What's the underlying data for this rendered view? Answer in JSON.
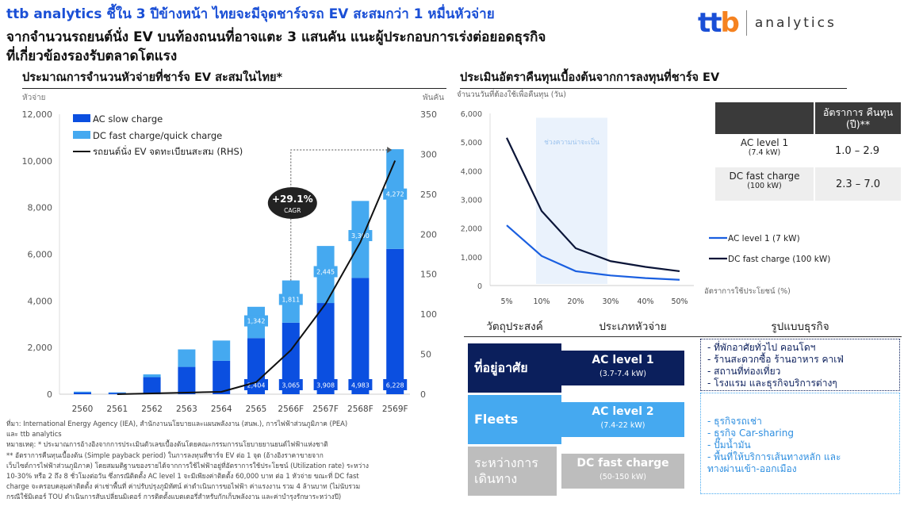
{
  "header": {
    "title": "ttb analytics ชี้ใน 3 ปีข้างหน้า ไทยจะมีจุดชาร์จรถ EV สะสมกว่า 1 หมื่นหัวจ่าย",
    "subtitle_line1": "จากจำนวนรถยนต์นั่ง EV บนท้องถนนที่อาจแตะ 3 แสนคัน แนะผู้ประกอบการเร่งต่อยอดธุรกิจ",
    "subtitle_line2": "ที่เกี่ยวข้องรองรับตลาดโตแรง",
    "logo_mark": "ttb",
    "logo_word": "analytics"
  },
  "colors": {
    "ac": "#0b4fe0",
    "dc": "#45a9f0",
    "ev_line": "#111111",
    "navy": "#0b1f5c",
    "fleet": "#45a9f0",
    "gray": "#bdbdbd",
    "accent": "#1a4fd6"
  },
  "chart_data": [
    {
      "type": "bar",
      "stacked": true,
      "title": "ประมาณการจำนวนหัวจ่ายที่ชาร์จ EV สะสมในไทย*",
      "ylabel": "หัวจ่าย",
      "y2label": "พันคัน",
      "ylim": [
        0,
        12000
      ],
      "y2lim": [
        0,
        350
      ],
      "yticks": [
        "0",
        "2,000",
        "4,000",
        "6,000",
        "8,000",
        "10,000",
        "12,000"
      ],
      "y2ticks": [
        "0",
        "50",
        "100",
        "150",
        "200",
        "250",
        "300",
        "350"
      ],
      "categories": [
        "2560",
        "2561",
        "2562",
        "2563",
        "2564",
        "2565",
        "2566F",
        "2567F",
        "2568F",
        "2569F"
      ],
      "series": [
        {
          "name": "AC slow charge",
          "kind": "bar",
          "values": [
            80,
            60,
            730,
            1170,
            1430,
            2404,
            3065,
            3908,
            4983,
            6228
          ],
          "labels": [
            "",
            "",
            "",
            "",
            "",
            "2,404",
            "3,065",
            "3,908",
            "4,983",
            "6,228"
          ]
        },
        {
          "name": "DC fast charge/quick charge",
          "kind": "bar",
          "values": [
            30,
            20,
            120,
            750,
            870,
            1342,
            1811,
            2445,
            3300,
            4272
          ],
          "labels": [
            "",
            "",
            "",
            "",
            "",
            "1,342",
            "1,811",
            "2,445",
            "3,300",
            "4,272"
          ]
        },
        {
          "name": "รถยนต์นั่ง EV จดทะเบียนสะสม (RHS)",
          "kind": "line",
          "axis": "right",
          "values": [
            null,
            0,
            1,
            2,
            3,
            15,
            55,
            113,
            190,
            292
          ]
        }
      ],
      "annotation": {
        "value": "+29.1%",
        "label": "CAGR"
      }
    },
    {
      "type": "line",
      "title": "ประเมินอัตราคืนทุนเบื้องต้นจากการลงทุนที่ชาร์จ EV",
      "ylabel": "จำนวนวันที่ต้องใช้เพื่อคืนทุน (วัน)",
      "xlabel": "อัตราการใช้ประโยชน์ (%)",
      "ylim": [
        0,
        6000
      ],
      "yticks": [
        "0",
        "1,000",
        "2,000",
        "3,000",
        "4,000",
        "5,000",
        "6,000"
      ],
      "categories": [
        "5%",
        "10%",
        "20%",
        "30%",
        "40%",
        "50%"
      ],
      "shaded_range": {
        "from": "10%",
        "to": "30%",
        "label": "ช่วงความน่าจะเป็น"
      },
      "series": [
        {
          "name": "AC level 1 (7 kW)",
          "values": [
            2100,
            1030,
            500,
            350,
            260,
            200
          ]
        },
        {
          "name": "DC fast charge (100 kW)",
          "values": [
            5150,
            2600,
            1300,
            850,
            650,
            500
          ]
        }
      ]
    }
  ],
  "payback_table": {
    "header": "อัตราการ คืนทุน (ปี)**",
    "rows": [
      {
        "type": "AC level 1",
        "spec": "(7.4 kW)",
        "value": "1.0 – 2.9"
      },
      {
        "type": "DC fast charge",
        "spec": "(100 kW)",
        "value": "2.3 – 7.0"
      }
    ]
  },
  "business": {
    "headers": [
      "วัตถุประสงค์",
      "ประเภทหัวจ่าย",
      "รูปแบบธุรกิจ"
    ],
    "groups": [
      {
        "purpose": "ที่อยู่อาศัย",
        "type": "AC level 1",
        "spec": "(3.7-7.4 kW)"
      },
      {
        "purpose": "Fleets",
        "type": "AC level 2",
        "spec": "(7.4-22 kW)"
      },
      {
        "purpose": "ระหว่างการเดินทาง",
        "type": "DC fast charge",
        "spec": "(50-150 kW)"
      }
    ],
    "biz_dark": [
      "-  ที่พักอาศัยทั่วไป คอนโดฯ",
      "-  ร้านสะดวกซื้อ ร้านอาหาร คาเฟ่",
      "-  สถานที่ท่องเที่ยว",
      "-  โรงแรม และธุรกิจบริการต่างๆ"
    ],
    "biz_light": [
      "-  ธุรกิจรถเช่า",
      "-  ธุรกิจ Car-sharing",
      "-  ปั๊มน้ำมัน",
      "-  พื้นที่ให้บริการเส้นทางหลัก และ",
      "    ทางผ่านเข้า-ออกเมือง"
    ]
  },
  "notes": [
    "ที่มา: International Energy Agency (IEA), สำนักงานนโยบายและแผนพลังงาน (สนพ.), การไฟฟ้าส่วนภูมิภาค (PEA)",
    "และ ttb analytics",
    "หมายเหตุ: * ประมาณการอ้างอิงจากการประเมินตัวเลขเบื้องต้นโดยคณะกรรมการนโยบายยานยนต์ไฟฟ้าแห่งชาติ",
    "             ** อัตราการคืนทุนเบื้องต้น (Simple payback period) ในการลงทุนที่ชาร์จ EV ต่อ 1 จุด (อ้างอิงราคาขายจาก",
    "เว็บไซต์การไฟฟ้าส่วนภูมิภาค) โดยสมมติฐานของรายได้จากการใช้ไฟฟ้าอยู่ที่อัตราการใช้ประโยชน์ (Utilization rate) ระหว่าง",
    "10-30% หรือ 2 ถึง 8 ชั่วโมงต่อวัน ซึ่งกรณีติดตั้ง AC level 1 จะมีเพียงค่าติดตั้ง 60,000 บาท ต่อ 1 หัวจ่าย ขณะที่ DC fast",
    "charge จะครอบคลุมค่าติดตั้ง ค่าเช่าพื้นที่ ค่าปรับปรุงภูมิทัศน์ ค่าดำเนินการขอไฟฟ้า ค่าแรงงาน รวม 4 ล้านบาท (ไม่นับรวม",
    "กรณีใช้มิเตอร์ TOU ดำเนินการสับเปลี่ยนมิเตอร์ การติดตั้งแบตเตอรี่สำหรับกักเก็บพลังงาน และค่าบำรุงรักษาระหว่างปี)"
  ]
}
